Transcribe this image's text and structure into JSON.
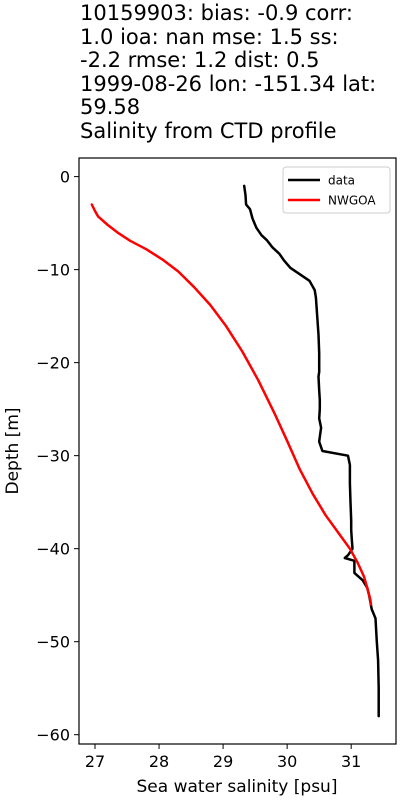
{
  "title_lines": [
    "10159903: bias: -0.9  corr:",
    "1.0  ioa: nan  mse: 1.5  ss:",
    "-2.2  rmse: 1.2  dist: 0.5",
    "1999-08-26 lon: -151.34 lat:",
    "59.58",
    "Salinity from CTD profile"
  ],
  "chart_data": {
    "type": "line",
    "xlabel": "Sea water salinity [psu]",
    "ylabel": "Depth [m]",
    "xlim": [
      26.75,
      31.7
    ],
    "ylim": [
      -61,
      2
    ],
    "xticks": [
      27,
      28,
      29,
      30,
      31
    ],
    "yticks": [
      0,
      -10,
      -20,
      -30,
      -40,
      -50,
      -60
    ],
    "legend_position": "top-right",
    "grid": false,
    "series": [
      {
        "name": "data",
        "color": "#000000",
        "points": [
          [
            29.33,
            -1
          ],
          [
            29.35,
            -2
          ],
          [
            29.36,
            -3
          ],
          [
            29.42,
            -3.5
          ],
          [
            29.46,
            -4.5
          ],
          [
            29.52,
            -5.5
          ],
          [
            29.6,
            -6.3
          ],
          [
            29.68,
            -6.8
          ],
          [
            29.77,
            -7.6
          ],
          [
            29.88,
            -8.3
          ],
          [
            29.95,
            -9
          ],
          [
            30.05,
            -9.8
          ],
          [
            30.2,
            -10.5
          ],
          [
            30.35,
            -11.2
          ],
          [
            30.43,
            -12.2
          ],
          [
            30.45,
            -13
          ],
          [
            30.47,
            -15
          ],
          [
            30.49,
            -17
          ],
          [
            30.5,
            -19
          ],
          [
            30.5,
            -21
          ],
          [
            30.49,
            -21.5
          ],
          [
            30.5,
            -23
          ],
          [
            30.51,
            -24
          ],
          [
            30.51,
            -25
          ],
          [
            30.5,
            -26
          ],
          [
            30.53,
            -27
          ],
          [
            30.51,
            -28
          ],
          [
            30.5,
            -28.5
          ],
          [
            30.55,
            -29.5
          ],
          [
            30.95,
            -30
          ],
          [
            30.98,
            -31
          ],
          [
            30.98,
            -33
          ],
          [
            30.99,
            -35
          ],
          [
            31.0,
            -37
          ],
          [
            31.0,
            -38
          ],
          [
            31.01,
            -39
          ],
          [
            31.02,
            -40
          ],
          [
            30.95,
            -40.7
          ],
          [
            30.9,
            -41
          ],
          [
            31.05,
            -41.3
          ],
          [
            31.05,
            -42.6
          ],
          [
            31.18,
            -43.4
          ],
          [
            31.25,
            -44.2
          ],
          [
            31.28,
            -45
          ],
          [
            31.32,
            -46.5
          ],
          [
            31.38,
            -47.5
          ],
          [
            31.4,
            -50
          ],
          [
            31.42,
            -52
          ],
          [
            31.43,
            -55
          ],
          [
            31.43,
            -58
          ]
        ]
      },
      {
        "name": "NWGOA",
        "color": "#ff0000",
        "points": [
          [
            26.95,
            -3
          ],
          [
            27.0,
            -3.7
          ],
          [
            27.05,
            -4.3
          ],
          [
            27.2,
            -5.2
          ],
          [
            27.35,
            -6
          ],
          [
            27.55,
            -6.9
          ],
          [
            27.8,
            -7.8
          ],
          [
            28.05,
            -8.9
          ],
          [
            28.3,
            -10.2
          ],
          [
            28.55,
            -11.9
          ],
          [
            28.8,
            -13.8
          ],
          [
            29.05,
            -16.1
          ],
          [
            29.3,
            -18.8
          ],
          [
            29.55,
            -21.9
          ],
          [
            29.8,
            -25.4
          ],
          [
            30.0,
            -28.4
          ],
          [
            30.2,
            -31.5
          ],
          [
            30.4,
            -34.1
          ],
          [
            30.6,
            -36.4
          ],
          [
            30.8,
            -38.3
          ],
          [
            30.98,
            -40
          ],
          [
            31.1,
            -41.5
          ],
          [
            31.2,
            -43
          ],
          [
            31.25,
            -44.2
          ],
          [
            31.3,
            -45.5
          ],
          [
            31.31,
            -46
          ]
        ]
      }
    ]
  }
}
